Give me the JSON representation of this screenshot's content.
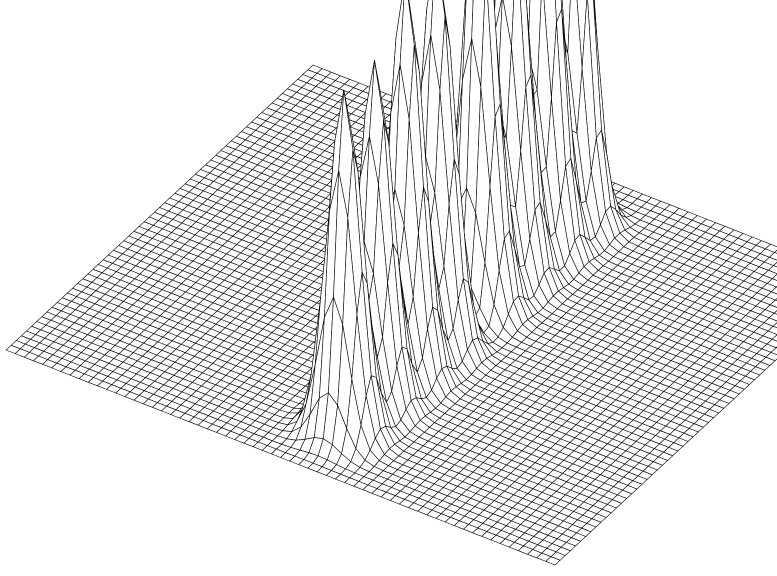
{
  "chart_data": {
    "type": "surface",
    "style": "wireframe",
    "colors": {
      "background": "#ffffff",
      "stroke": "#000000",
      "face": "#ffffff"
    },
    "grid_lines_x": 61,
    "grid_lines_y": 61,
    "x_range": [
      0,
      1
    ],
    "y_range": [
      0,
      1
    ],
    "z_range": [
      0,
      1
    ],
    "axes_visible": false,
    "grid": true,
    "legend": "none",
    "peaks": [
      {
        "x": 0.55,
        "y": 0.12,
        "height": 0.62,
        "spread": 0.028
      },
      {
        "x": 0.55,
        "y": 0.22,
        "height": 0.62,
        "spread": 0.028
      },
      {
        "x": 0.55,
        "y": 0.32,
        "height": 0.72,
        "spread": 0.028
      },
      {
        "x": 0.55,
        "y": 0.42,
        "height": 0.72,
        "spread": 0.028
      },
      {
        "x": 0.55,
        "y": 0.56,
        "height": 0.78,
        "spread": 0.028
      },
      {
        "x": 0.55,
        "y": 0.66,
        "height": 0.78,
        "spread": 0.028
      },
      {
        "x": 0.55,
        "y": 0.76,
        "height": 0.92,
        "spread": 0.028
      },
      {
        "x": 0.55,
        "y": 0.86,
        "height": 0.92,
        "spread": 0.028
      }
    ]
  }
}
